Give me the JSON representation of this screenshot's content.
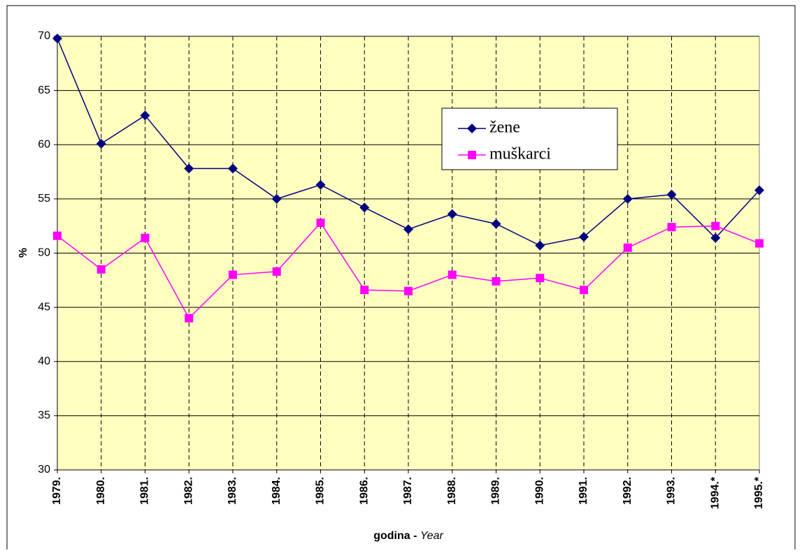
{
  "chart_data": {
    "type": "line",
    "categories": [
      "1979.",
      "1980.",
      "1981.",
      "1982.",
      "1983.",
      "1984.",
      "1985.",
      "1986.",
      "1987.",
      "1988.",
      "1989.",
      "1990.",
      "1991.",
      "1992.",
      "1993.",
      "1994.*",
      "1995.*"
    ],
    "series": [
      {
        "name": "žene",
        "color": "#000080",
        "marker": "diamond",
        "values": [
          69.8,
          60.1,
          62.7,
          57.8,
          57.8,
          55.0,
          56.3,
          54.2,
          52.2,
          53.6,
          52.7,
          50.7,
          51.5,
          55.0,
          55.4,
          51.4,
          55.8
        ]
      },
      {
        "name": "muškarci",
        "color": "#ff00ff",
        "marker": "square",
        "values": [
          51.6,
          48.5,
          51.4,
          44.0,
          48.0,
          48.3,
          52.8,
          46.6,
          46.5,
          48.0,
          47.4,
          47.7,
          46.6,
          50.5,
          52.4,
          52.5,
          50.9
        ]
      }
    ],
    "ylim": [
      30,
      70
    ],
    "yticks": [
      30,
      35,
      40,
      45,
      50,
      55,
      60,
      65,
      70
    ],
    "y_label": "%",
    "x_label": "godina -",
    "x_label_en": "Year",
    "grid": true,
    "plot_background": "#ffffc0"
  }
}
